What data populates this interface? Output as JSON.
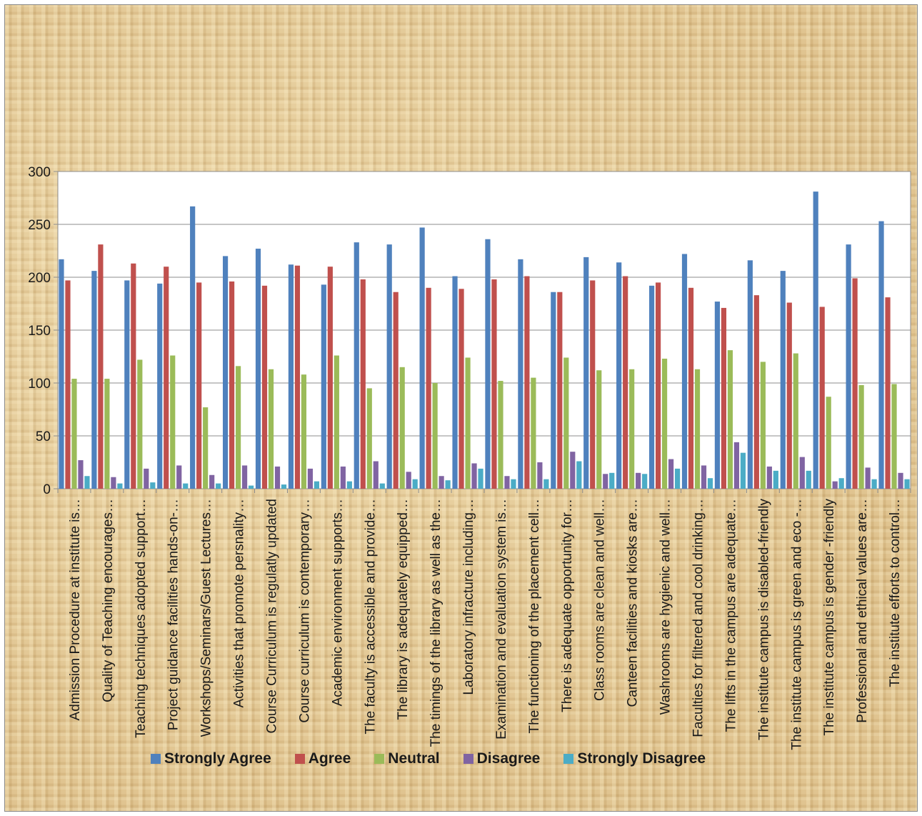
{
  "chart_data": {
    "type": "bar",
    "title": "",
    "xlabel": "",
    "ylabel": "",
    "ylim": [
      0,
      300
    ],
    "yticks": [
      0,
      50,
      100,
      150,
      200,
      250,
      300
    ],
    "grid": true,
    "legend_position": "bottom",
    "categories": [
      "Admission Procedure at institute is…",
      "Quality of Teaching encourages…",
      "Teaching techniques adopted support…",
      "Project guidance facilities hands-on-…",
      "Workshops/Seminars/Guest Lectures…",
      "Activities that promote persnality…",
      "Course Curriculum is regulatly updated",
      "Course curriculum is contemporary…",
      "Academic environment supports…",
      "The faculty is accessible and provide…",
      "The library is adequately equipped…",
      "The timings of the library as well as the…",
      "Laboratory infracture including…",
      "Examination and evaluation system is…",
      "The functioning of the placement cell…",
      "There is adequate opportunity for…",
      "Class rooms are clean and well…",
      "Canteen facilities and kiosks are…",
      "Washrooms are hygienic and well…",
      "Faculties for filtered and cool drinking…",
      "The lifts in the campus are adequate…",
      "The institute campus is disabled-friendly",
      "The institute campus is green and eco -…",
      "The institute campus is gender -friendly",
      "Professional and ethical values are…",
      "The institute efforts to control…"
    ],
    "series": [
      {
        "name": "Strongly Agree",
        "color": "#4f81bd",
        "values": [
          217,
          206,
          197,
          194,
          267,
          220,
          227,
          212,
          193,
          233,
          231,
          247,
          201,
          236,
          217,
          186,
          219,
          214,
          192,
          222,
          177,
          216,
          206,
          281,
          231,
          253
        ]
      },
      {
        "name": "Agree",
        "color": "#c0504d",
        "values": [
          197,
          231,
          213,
          210,
          195,
          196,
          192,
          211,
          210,
          198,
          186,
          190,
          189,
          198,
          201,
          186,
          197,
          201,
          195,
          190,
          171,
          183,
          176,
          172,
          199,
          181
        ]
      },
      {
        "name": "Neutral",
        "color": "#9bbb59",
        "values": [
          104,
          104,
          122,
          126,
          77,
          116,
          113,
          108,
          126,
          95,
          115,
          100,
          124,
          102,
          105,
          124,
          112,
          113,
          123,
          113,
          131,
          120,
          128,
          87,
          98,
          99
        ]
      },
      {
        "name": "Disagree",
        "color": "#8064a2",
        "values": [
          27,
          11,
          19,
          22,
          13,
          22,
          21,
          19,
          21,
          26,
          16,
          12,
          24,
          12,
          25,
          35,
          14,
          15,
          28,
          22,
          44,
          21,
          30,
          7,
          20,
          15
        ]
      },
      {
        "name": "Strongly Disagree",
        "color": "#4bacc6",
        "values": [
          12,
          5,
          6,
          5,
          5,
          3,
          4,
          7,
          7,
          5,
          9,
          8,
          19,
          9,
          9,
          26,
          15,
          14,
          19,
          10,
          34,
          17,
          17,
          10,
          9,
          9
        ]
      }
    ]
  }
}
